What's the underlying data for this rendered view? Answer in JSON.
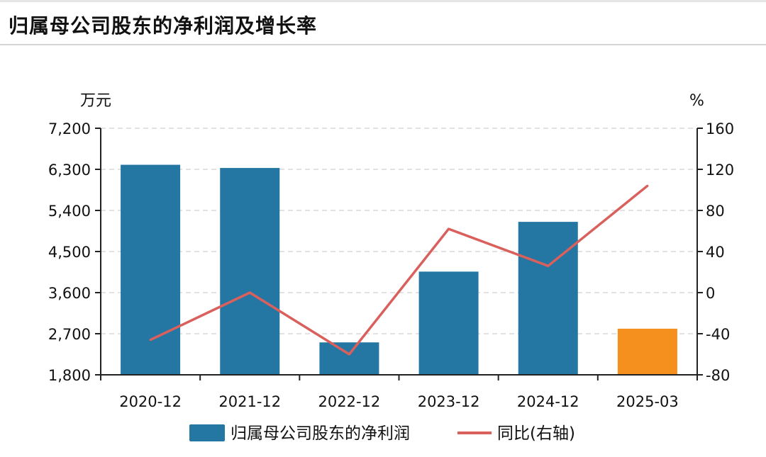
{
  "header": {
    "title": "归属母公司股东的净利润及增长率"
  },
  "chart_data": {
    "type": "bar",
    "categories": [
      "2020-12",
      "2021-12",
      "2022-12",
      "2023-12",
      "2024-12",
      "2025-03"
    ],
    "left_axis": {
      "unit": "万元",
      "range": [
        1800,
        7200
      ],
      "ticks": [
        1800,
        2700,
        3600,
        4500,
        5400,
        6300,
        7200
      ],
      "tick_labels": [
        "1,800",
        "2,700",
        "3,600",
        "4,500",
        "5,400",
        "6,300",
        "7,200"
      ]
    },
    "right_axis": {
      "unit": "%",
      "range": [
        -80,
        160
      ],
      "ticks": [
        -80,
        -40,
        0,
        40,
        80,
        120,
        160
      ],
      "tick_labels": [
        "-80",
        "-40",
        "0",
        "40",
        "80",
        "120",
        "160"
      ]
    },
    "series": [
      {
        "name": "归属母公司股东的净利润",
        "type": "bar",
        "axis": "left",
        "values": [
          6400,
          6330,
          2510,
          4060,
          5150,
          2810
        ],
        "colors": [
          "#2477a3",
          "#2477a3",
          "#2477a3",
          "#2477a3",
          "#2477a3",
          "#f5901e"
        ]
      },
      {
        "name": "同比(右轴)",
        "type": "line",
        "axis": "right",
        "values": [
          -46,
          0,
          -60,
          62,
          26,
          104
        ],
        "color": "#d9605c"
      }
    ],
    "grid": true,
    "legend_position": "bottom"
  }
}
